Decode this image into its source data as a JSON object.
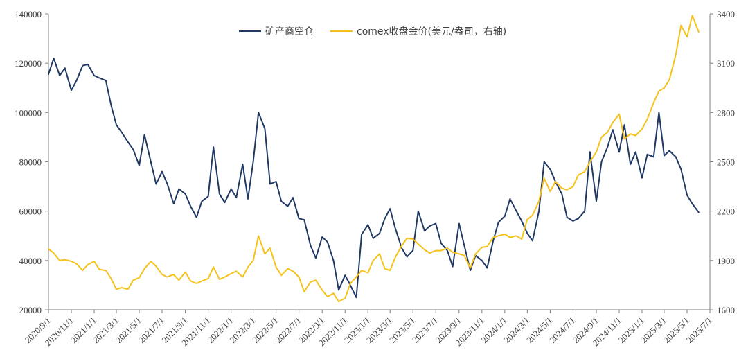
{
  "chart_data": {
    "type": "line",
    "title": "",
    "legend": {
      "placement": "top-center"
    },
    "grid": false,
    "colors": {
      "series0": "#1f3864",
      "series1": "#f5c11a",
      "axis": "#808080",
      "text": "#404040"
    },
    "x_axis": {
      "type": "date",
      "range": [
        "2020-09-01",
        "2025-07-01"
      ],
      "tick_labels": [
        "2020/9/1",
        "2020/11/1",
        "2021/1/1",
        "2021/3/1",
        "2021/5/1",
        "2021/7/1",
        "2021/9/1",
        "2021/11/1",
        "2022/1/1",
        "2022/3/1",
        "2022/5/1",
        "2022/7/1",
        "2022/9/1",
        "2022/11/1",
        "2023/1/1",
        "2023/3/1",
        "2023/5/1",
        "2023/7/1",
        "2023/9/1",
        "2023/11/1",
        "2024/1/1",
        "2024/3/1",
        "2024/5/1",
        "2024/7/1",
        "2024/9/1",
        "2024/11/1",
        "2025/1/1",
        "2025/3/1",
        "2025/5/1",
        "2025/7/1"
      ],
      "tick_dates": [
        "2020-09-01",
        "2020-11-01",
        "2021-01-01",
        "2021-03-01",
        "2021-05-01",
        "2021-07-01",
        "2021-09-01",
        "2021-11-01",
        "2022-01-01",
        "2022-03-01",
        "2022-05-01",
        "2022-07-01",
        "2022-09-01",
        "2022-11-01",
        "2023-01-01",
        "2023-03-01",
        "2023-05-01",
        "2023-07-01",
        "2023-09-01",
        "2023-11-01",
        "2024-01-01",
        "2024-03-01",
        "2024-05-01",
        "2024-07-01",
        "2024-09-01",
        "2024-11-01",
        "2025-01-01",
        "2025-03-01",
        "2025-05-01",
        "2025-07-01"
      ]
    },
    "y_axis_left": {
      "range": [
        20000,
        140000
      ],
      "ticks": [
        20000,
        40000,
        60000,
        80000,
        100000,
        120000,
        140000
      ],
      "tick_labels": [
        "20000",
        "40000",
        "60000",
        "80000",
        "100000",
        "120000",
        "140000"
      ]
    },
    "y_axis_right": {
      "range": [
        1600,
        3400
      ],
      "ticks": [
        1600,
        1900,
        2200,
        2500,
        2800,
        3100,
        3400
      ],
      "tick_labels": [
        "1600",
        "1900",
        "2200",
        "2500",
        "2800",
        "3100",
        "3400"
      ]
    },
    "series": [
      {
        "name": "矿产商空仓",
        "axis": "left",
        "points": [
          [
            "2020-09-01",
            115500
          ],
          [
            "2020-09-15",
            122000
          ],
          [
            "2020-10-01",
            115000
          ],
          [
            "2020-10-15",
            118000
          ],
          [
            "2020-11-01",
            109000
          ],
          [
            "2020-11-15",
            113000
          ],
          [
            "2020-12-01",
            119000
          ],
          [
            "2020-12-15",
            119500
          ],
          [
            "2021-01-01",
            115000
          ],
          [
            "2021-01-15",
            114000
          ],
          [
            "2021-02-01",
            113000
          ],
          [
            "2021-02-15",
            103000
          ],
          [
            "2021-03-01",
            95000
          ],
          [
            "2021-03-15",
            92000
          ],
          [
            "2021-04-01",
            88000
          ],
          [
            "2021-04-15",
            85000
          ],
          [
            "2021-05-01",
            78500
          ],
          [
            "2021-05-15",
            91000
          ],
          [
            "2021-06-01",
            80000
          ],
          [
            "2021-06-15",
            71000
          ],
          [
            "2021-07-01",
            76000
          ],
          [
            "2021-07-15",
            71000
          ],
          [
            "2021-08-01",
            63000
          ],
          [
            "2021-08-15",
            69000
          ],
          [
            "2021-09-01",
            67000
          ],
          [
            "2021-09-15",
            62000
          ],
          [
            "2021-10-01",
            57500
          ],
          [
            "2021-10-15",
            64000
          ],
          [
            "2021-11-01",
            66000
          ],
          [
            "2021-11-15",
            86000
          ],
          [
            "2021-12-01",
            67000
          ],
          [
            "2021-12-15",
            63500
          ],
          [
            "2022-01-01",
            69000
          ],
          [
            "2022-01-15",
            65500
          ],
          [
            "2022-02-01",
            79000
          ],
          [
            "2022-02-15",
            65000
          ],
          [
            "2022-03-01",
            80000
          ],
          [
            "2022-03-15",
            100000
          ],
          [
            "2022-04-01",
            93500
          ],
          [
            "2022-04-15",
            71000
          ],
          [
            "2022-05-01",
            72000
          ],
          [
            "2022-05-15",
            64000
          ],
          [
            "2022-06-01",
            62000
          ],
          [
            "2022-06-15",
            65500
          ],
          [
            "2022-07-01",
            57000
          ],
          [
            "2022-07-15",
            56500
          ],
          [
            "2022-08-01",
            46000
          ],
          [
            "2022-08-15",
            41000
          ],
          [
            "2022-09-01",
            49500
          ],
          [
            "2022-09-15",
            47500
          ],
          [
            "2022-10-01",
            40000
          ],
          [
            "2022-10-15",
            28000
          ],
          [
            "2022-11-01",
            34000
          ],
          [
            "2022-11-15",
            30000
          ],
          [
            "2022-12-01",
            25000
          ],
          [
            "2022-12-15",
            50500
          ],
          [
            "2023-01-01",
            54500
          ],
          [
            "2023-01-15",
            49000
          ],
          [
            "2023-02-01",
            51000
          ],
          [
            "2023-02-15",
            57000
          ],
          [
            "2023-03-01",
            61000
          ],
          [
            "2023-03-15",
            53000
          ],
          [
            "2023-04-01",
            45000
          ],
          [
            "2023-04-15",
            41500
          ],
          [
            "2023-05-01",
            44000
          ],
          [
            "2023-05-15",
            60000
          ],
          [
            "2023-06-01",
            52000
          ],
          [
            "2023-06-15",
            54000
          ],
          [
            "2023-07-01",
            55000
          ],
          [
            "2023-07-15",
            47000
          ],
          [
            "2023-08-01",
            44000
          ],
          [
            "2023-08-15",
            37500
          ],
          [
            "2023-09-01",
            55000
          ],
          [
            "2023-09-15",
            46000
          ],
          [
            "2023-10-01",
            36000
          ],
          [
            "2023-10-15",
            42000
          ],
          [
            "2023-11-01",
            40000
          ],
          [
            "2023-11-15",
            37000
          ],
          [
            "2023-12-01",
            48000
          ],
          [
            "2023-12-15",
            55500
          ],
          [
            "2024-01-01",
            58000
          ],
          [
            "2024-01-15",
            65000
          ],
          [
            "2024-02-01",
            60000
          ],
          [
            "2024-02-15",
            56000
          ],
          [
            "2024-03-01",
            51000
          ],
          [
            "2024-03-15",
            48000
          ],
          [
            "2024-04-01",
            60000
          ],
          [
            "2024-04-15",
            80000
          ],
          [
            "2024-05-01",
            77000
          ],
          [
            "2024-05-15",
            72000
          ],
          [
            "2024-06-01",
            67000
          ],
          [
            "2024-06-15",
            57500
          ],
          [
            "2024-07-01",
            56000
          ],
          [
            "2024-07-15",
            57000
          ],
          [
            "2024-08-01",
            60000
          ],
          [
            "2024-08-15",
            84000
          ],
          [
            "2024-09-01",
            64000
          ],
          [
            "2024-09-15",
            80000
          ],
          [
            "2024-10-01",
            86000
          ],
          [
            "2024-10-15",
            93000
          ],
          [
            "2024-11-01",
            84000
          ],
          [
            "2024-11-15",
            95000
          ],
          [
            "2024-12-01",
            79000
          ],
          [
            "2024-12-15",
            84000
          ],
          [
            "2025-01-01",
            73500
          ],
          [
            "2025-01-15",
            83000
          ],
          [
            "2025-02-01",
            82000
          ],
          [
            "2025-02-15",
            100000
          ],
          [
            "2025-03-01",
            82500
          ],
          [
            "2025-03-15",
            84500
          ],
          [
            "2025-04-01",
            82000
          ],
          [
            "2025-04-15",
            77000
          ],
          [
            "2025-05-01",
            66500
          ],
          [
            "2025-05-15",
            63000
          ],
          [
            "2025-06-01",
            59500
          ]
        ]
      },
      {
        "name": "comex收盘金价(美元/盎司，右轴)",
        "axis": "right",
        "points": [
          [
            "2020-09-01",
            1970
          ],
          [
            "2020-09-15",
            1945
          ],
          [
            "2020-10-01",
            1900
          ],
          [
            "2020-10-15",
            1905
          ],
          [
            "2020-11-01",
            1895
          ],
          [
            "2020-11-15",
            1880
          ],
          [
            "2020-12-01",
            1840
          ],
          [
            "2020-12-15",
            1875
          ],
          [
            "2021-01-01",
            1895
          ],
          [
            "2021-01-15",
            1845
          ],
          [
            "2021-02-01",
            1840
          ],
          [
            "2021-02-15",
            1790
          ],
          [
            "2021-03-01",
            1725
          ],
          [
            "2021-03-15",
            1735
          ],
          [
            "2021-04-01",
            1725
          ],
          [
            "2021-04-15",
            1780
          ],
          [
            "2021-05-01",
            1795
          ],
          [
            "2021-05-15",
            1850
          ],
          [
            "2021-06-01",
            1895
          ],
          [
            "2021-06-15",
            1865
          ],
          [
            "2021-07-01",
            1815
          ],
          [
            "2021-07-15",
            1800
          ],
          [
            "2021-08-01",
            1815
          ],
          [
            "2021-08-15",
            1780
          ],
          [
            "2021-09-01",
            1830
          ],
          [
            "2021-09-15",
            1775
          ],
          [
            "2021-10-01",
            1760
          ],
          [
            "2021-10-15",
            1775
          ],
          [
            "2021-11-01",
            1790
          ],
          [
            "2021-11-15",
            1860
          ],
          [
            "2021-12-01",
            1785
          ],
          [
            "2021-12-15",
            1800
          ],
          [
            "2022-01-01",
            1820
          ],
          [
            "2022-01-15",
            1835
          ],
          [
            "2022-02-01",
            1800
          ],
          [
            "2022-02-15",
            1860
          ],
          [
            "2022-03-01",
            1900
          ],
          [
            "2022-03-15",
            2050
          ],
          [
            "2022-04-01",
            1940
          ],
          [
            "2022-04-15",
            1975
          ],
          [
            "2022-05-01",
            1860
          ],
          [
            "2022-05-15",
            1810
          ],
          [
            "2022-06-01",
            1850
          ],
          [
            "2022-06-15",
            1835
          ],
          [
            "2022-07-01",
            1800
          ],
          [
            "2022-07-15",
            1710
          ],
          [
            "2022-08-01",
            1770
          ],
          [
            "2022-08-15",
            1780
          ],
          [
            "2022-09-01",
            1720
          ],
          [
            "2022-09-15",
            1680
          ],
          [
            "2022-10-01",
            1700
          ],
          [
            "2022-10-15",
            1650
          ],
          [
            "2022-11-01",
            1670
          ],
          [
            "2022-11-15",
            1760
          ],
          [
            "2022-12-01",
            1800
          ],
          [
            "2022-12-15",
            1840
          ],
          [
            "2023-01-01",
            1825
          ],
          [
            "2023-01-15",
            1900
          ],
          [
            "2023-02-01",
            1940
          ],
          [
            "2023-02-15",
            1850
          ],
          [
            "2023-03-01",
            1840
          ],
          [
            "2023-03-15",
            1920
          ],
          [
            "2023-04-01",
            1990
          ],
          [
            "2023-04-15",
            2035
          ],
          [
            "2023-05-01",
            2030
          ],
          [
            "2023-05-15",
            2000
          ],
          [
            "2023-06-01",
            1965
          ],
          [
            "2023-06-15",
            1945
          ],
          [
            "2023-07-01",
            1960
          ],
          [
            "2023-07-15",
            1960
          ],
          [
            "2023-08-01",
            1975
          ],
          [
            "2023-08-15",
            1950
          ],
          [
            "2023-09-01",
            1940
          ],
          [
            "2023-09-15",
            1930
          ],
          [
            "2023-10-01",
            1855
          ],
          [
            "2023-10-15",
            1940
          ],
          [
            "2023-11-01",
            1980
          ],
          [
            "2023-11-15",
            1985
          ],
          [
            "2023-12-01",
            2040
          ],
          [
            "2023-12-15",
            2050
          ],
          [
            "2024-01-01",
            2060
          ],
          [
            "2024-01-15",
            2040
          ],
          [
            "2024-02-01",
            2050
          ],
          [
            "2024-02-15",
            2030
          ],
          [
            "2024-03-01",
            2150
          ],
          [
            "2024-03-15",
            2175
          ],
          [
            "2024-04-01",
            2260
          ],
          [
            "2024-04-15",
            2400
          ],
          [
            "2024-05-01",
            2320
          ],
          [
            "2024-05-15",
            2380
          ],
          [
            "2024-06-01",
            2340
          ],
          [
            "2024-06-15",
            2330
          ],
          [
            "2024-07-01",
            2350
          ],
          [
            "2024-07-15",
            2420
          ],
          [
            "2024-08-01",
            2440
          ],
          [
            "2024-08-15",
            2500
          ],
          [
            "2024-09-01",
            2560
          ],
          [
            "2024-09-15",
            2650
          ],
          [
            "2024-10-01",
            2680
          ],
          [
            "2024-10-15",
            2740
          ],
          [
            "2024-11-01",
            2790
          ],
          [
            "2024-11-15",
            2640
          ],
          [
            "2024-12-01",
            2670
          ],
          [
            "2024-12-15",
            2660
          ],
          [
            "2025-01-01",
            2700
          ],
          [
            "2025-01-15",
            2760
          ],
          [
            "2025-02-01",
            2860
          ],
          [
            "2025-02-15",
            2930
          ],
          [
            "2025-03-01",
            2950
          ],
          [
            "2025-03-15",
            3000
          ],
          [
            "2025-04-01",
            3150
          ],
          [
            "2025-04-15",
            3330
          ],
          [
            "2025-05-01",
            3260
          ],
          [
            "2025-05-15",
            3390
          ],
          [
            "2025-06-01",
            3290
          ]
        ]
      }
    ]
  }
}
